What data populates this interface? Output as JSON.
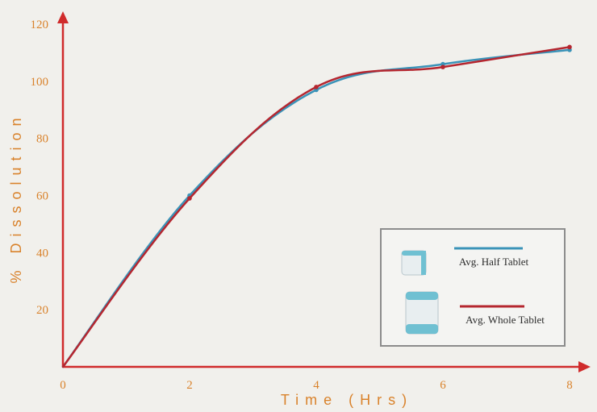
{
  "chart_data": {
    "type": "line",
    "xlabel": "Time (Hrs)",
    "ylabel": "% Dissolution",
    "xlim": [
      0,
      8
    ],
    "ylim": [
      0,
      120
    ],
    "x_ticks": [
      "0",
      "2",
      "4",
      "6",
      "8"
    ],
    "y_ticks": [
      "20",
      "40",
      "60",
      "80",
      "100",
      "120"
    ],
    "grid": false,
    "legend_position": "bottom-right",
    "series": [
      {
        "name": "Avg. Half Tablet",
        "color": "#3a93b8",
        "x": [
          0,
          2,
          4,
          6,
          8
        ],
        "y": [
          0,
          60,
          97,
          106,
          111
        ]
      },
      {
        "name": "Avg. Whole Tablet",
        "color": "#b5262f",
        "x": [
          0,
          2,
          4,
          6,
          8
        ],
        "y": [
          0,
          59,
          98,
          105,
          112
        ]
      }
    ],
    "colors": {
      "axis": "#d02b2b",
      "text": "#d9822b"
    }
  }
}
